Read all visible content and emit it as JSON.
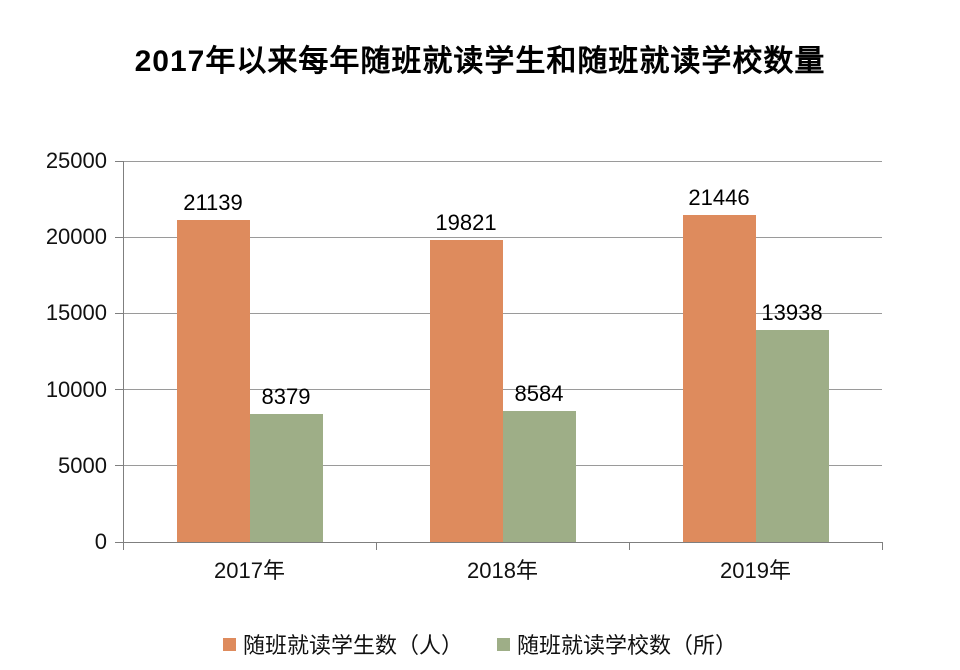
{
  "title": "2017年以来每年随班就读学生和随班就读学校数量",
  "colors": {
    "series1": "#DE8B5D",
    "series2": "#9EAE87",
    "gridline": "#9A9A9A",
    "axis": "#7F7F7F",
    "text": "#000000"
  },
  "chart_data": {
    "type": "bar",
    "title": "2017年以来每年随班就读学生和随班就读学校数量",
    "categories": [
      "2017年",
      "2018年",
      "2019年"
    ],
    "series": [
      {
        "name": "随班就读学生数（人）",
        "color": "#DE8B5D",
        "values": [
          21139,
          19821,
          21446
        ]
      },
      {
        "name": "随班就读学校数（所）",
        "color": "#9EAE87",
        "values": [
          8379,
          8584,
          13938
        ]
      }
    ],
    "xlabel": "",
    "ylabel": "",
    "ylim": [
      0,
      25000
    ],
    "yticks": [
      0,
      5000,
      10000,
      15000,
      20000,
      25000
    ],
    "grid": true,
    "data_labels": true,
    "legend_position": "bottom"
  }
}
